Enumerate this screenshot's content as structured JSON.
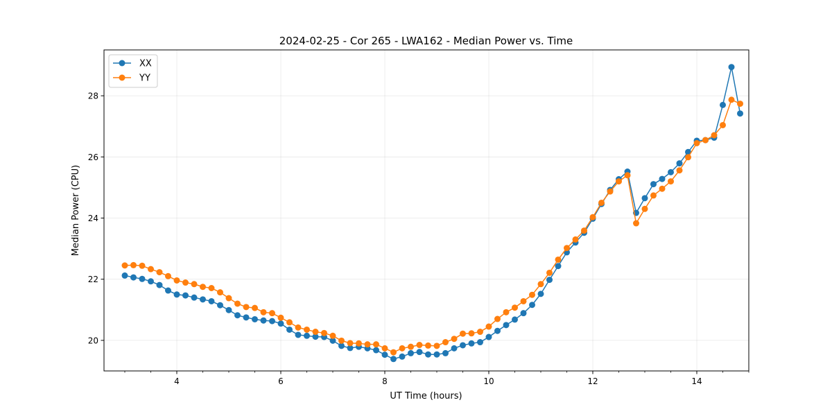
{
  "chart_data": {
    "type": "line",
    "title": "2024-02-25 - Cor 265 - LWA162 - Median Power vs. Time",
    "xlabel": "UT Time (hours)",
    "ylabel": "Median Power (CPU)",
    "xlim": [
      2.6,
      15.0
    ],
    "ylim": [
      19.0,
      29.5
    ],
    "xticks": [
      4,
      6,
      8,
      10,
      12,
      14
    ],
    "yticks": [
      20,
      22,
      24,
      26,
      28
    ],
    "xtick_labels": [
      "4",
      "6",
      "8",
      "10",
      "12",
      "14"
    ],
    "ytick_labels": [
      "20",
      "22",
      "24",
      "26",
      "28"
    ],
    "grid": true,
    "legend_position": "top-left",
    "x": [
      3.0,
      3.1667,
      3.3333,
      3.5,
      3.6667,
      3.8333,
      4.0,
      4.1667,
      4.3333,
      4.5,
      4.6667,
      4.8333,
      5.0,
      5.1667,
      5.3333,
      5.5,
      5.6667,
      5.8333,
      6.0,
      6.1667,
      6.3333,
      6.5,
      6.6667,
      6.8333,
      7.0,
      7.1667,
      7.3333,
      7.5,
      7.6667,
      7.8333,
      8.0,
      8.1667,
      8.3333,
      8.5,
      8.6667,
      8.8333,
      9.0,
      9.1667,
      9.3333,
      9.5,
      9.6667,
      9.8333,
      10.0,
      10.1667,
      10.3333,
      10.5,
      10.6667,
      10.8333,
      11.0,
      11.1667,
      11.3333,
      11.5,
      11.6667,
      11.8333,
      12.0,
      12.1667,
      12.3333,
      12.5,
      12.6667,
      12.8333,
      13.0,
      13.1667,
      13.3333,
      13.5,
      13.6667,
      13.8333,
      14.0,
      14.1667,
      14.3333,
      14.5,
      14.6667,
      14.8333
    ],
    "series": [
      {
        "name": "XX",
        "color": "#1f77b4",
        "values": [
          22.12,
          22.06,
          22.01,
          21.93,
          21.81,
          21.63,
          21.5,
          21.47,
          21.4,
          21.34,
          21.28,
          21.15,
          20.99,
          20.82,
          20.75,
          20.69,
          20.65,
          20.63,
          20.55,
          20.35,
          20.18,
          20.15,
          20.12,
          20.11,
          19.99,
          19.82,
          19.75,
          19.79,
          19.74,
          19.68,
          19.53,
          19.39,
          19.47,
          19.58,
          19.62,
          19.54,
          19.54,
          19.58,
          19.74,
          19.84,
          19.9,
          19.94,
          20.11,
          20.31,
          20.5,
          20.68,
          20.89,
          21.16,
          21.52,
          21.98,
          22.43,
          22.88,
          23.2,
          23.52,
          23.98,
          24.46,
          24.92,
          25.27,
          25.52,
          24.17,
          24.65,
          25.11,
          25.28,
          25.5,
          25.79,
          26.16,
          26.53,
          26.55,
          26.63,
          27.7,
          28.94,
          27.42
        ]
      },
      {
        "name": "YY",
        "color": "#ff7f0e",
        "values": [
          22.45,
          22.46,
          22.44,
          22.33,
          22.23,
          22.1,
          21.96,
          21.89,
          21.84,
          21.75,
          21.71,
          21.57,
          21.38,
          21.2,
          21.09,
          21.06,
          20.92,
          20.89,
          20.74,
          20.59,
          20.42,
          20.35,
          20.28,
          20.24,
          20.15,
          19.99,
          19.91,
          19.9,
          19.87,
          19.87,
          19.74,
          19.61,
          19.74,
          19.79,
          19.85,
          19.83,
          19.82,
          19.94,
          20.05,
          20.22,
          20.23,
          20.28,
          20.45,
          20.7,
          20.92,
          21.07,
          21.28,
          21.49,
          21.84,
          22.21,
          22.64,
          23.02,
          23.3,
          23.59,
          24.03,
          24.5,
          24.87,
          25.2,
          25.4,
          23.83,
          24.3,
          24.74,
          24.96,
          25.2,
          25.56,
          25.99,
          26.45,
          26.55,
          26.71,
          27.04,
          27.87,
          27.74
        ]
      }
    ]
  }
}
